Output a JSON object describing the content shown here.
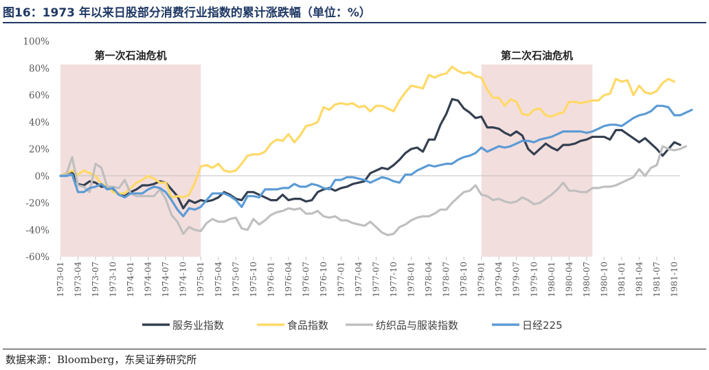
{
  "figure": {
    "title": "图16：1973 年以来日股部分消费行业指数的累计涨跌幅（单位：%）",
    "source": "数据来源：Bloomberg，东吴证券研究所"
  },
  "chart_data": {
    "type": "line",
    "ylim": [
      -60,
      100
    ],
    "y_ticks": [
      "100%",
      "80%",
      "60%",
      "40%",
      "20%",
      "0%",
      "-20%",
      "-40%",
      "-60%"
    ],
    "y_tick_values": [
      100,
      80,
      60,
      40,
      20,
      0,
      -20,
      -40,
      -60
    ],
    "x_tick_labels": [
      "1973-01",
      "1973-04",
      "1973-07",
      "1973-10",
      "1974-01",
      "1974-04",
      "1974-07",
      "1974-10",
      "1975-01",
      "1975-04",
      "1975-07",
      "1975-10",
      "1976-01",
      "1976-04",
      "1976-07",
      "1976-10",
      "1977-01",
      "1977-04",
      "1977-07",
      "1977-10",
      "1978-01",
      "1978-04",
      "1978-07",
      "1978-10",
      "1979-01",
      "1979-04",
      "1979-07",
      "1979-10",
      "1980-01",
      "1980-04",
      "1980-07",
      "1980-10",
      "1981-01",
      "1981-04",
      "1981-07",
      "1981-10"
    ],
    "x_start": "1973-01",
    "legend_position": "bottom",
    "shaded_regions": [
      {
        "label": "第一次石油危机",
        "start": "1973-01",
        "end": "1975-01",
        "color": "#f3dede"
      },
      {
        "label": "第二次石油危机",
        "start": "1979-01",
        "end": "1980-08",
        "color": "#f3dede"
      }
    ],
    "series": [
      {
        "name": "服务业指数",
        "color": "#333f50",
        "values": [
          0,
          2,
          3,
          -6,
          -7,
          -4,
          -5,
          -8,
          -8,
          -10,
          -14,
          -15,
          -12,
          -10,
          -7,
          -7,
          -6,
          -4,
          -5,
          -10,
          -15,
          -24,
          -18,
          -20,
          -18,
          -19,
          -18,
          -16,
          -12,
          -14,
          -17,
          -18,
          -12,
          -12,
          -14,
          -16,
          -18,
          -18,
          -14,
          -18,
          -17,
          -17,
          -19,
          -18,
          -12,
          -10,
          -9,
          -11,
          -9,
          -8,
          -6,
          -5,
          -4,
          2,
          4,
          6,
          5,
          8,
          12,
          17,
          20,
          21,
          18,
          27,
          27,
          38,
          46,
          57,
          56,
          50,
          47,
          43,
          44,
          36,
          36,
          35,
          32,
          30,
          33,
          30,
          20,
          16,
          20,
          24,
          21,
          19,
          23,
          23,
          24,
          26,
          27,
          29,
          29,
          29,
          27,
          34,
          34,
          31,
          28,
          25,
          28,
          24,
          20,
          15,
          20,
          25,
          23
        ]
      },
      {
        "name": "食品指数",
        "color": "#ffd966",
        "values": [
          0,
          2,
          4,
          1,
          4,
          2,
          0,
          -6,
          -7,
          -12,
          -13,
          -13,
          -9,
          -5,
          -3,
          0,
          -2,
          -5,
          -5,
          -16,
          -15,
          -16,
          -14,
          -5,
          7,
          8,
          6,
          9,
          4,
          3,
          4,
          9,
          15,
          16,
          16,
          18,
          24,
          27,
          26,
          31,
          25,
          30,
          37,
          38,
          40,
          51,
          49,
          53,
          54,
          53,
          54,
          51,
          52,
          48,
          52,
          52,
          50,
          48,
          56,
          62,
          67,
          66,
          65,
          75,
          73,
          75,
          76,
          81,
          78,
          76,
          77,
          74,
          73,
          64,
          58,
          58,
          52,
          57,
          55,
          46,
          45,
          49,
          50,
          45,
          44,
          46,
          47,
          55,
          55,
          54,
          55,
          56,
          56,
          60,
          61,
          72,
          70,
          71,
          60,
          67,
          62,
          61,
          63,
          69,
          72,
          70
        ]
      },
      {
        "name": "纺织品与服装指数",
        "color": "#bfbfbf",
        "values": [
          0,
          1,
          14,
          -7,
          -8,
          -12,
          9,
          6,
          -8,
          -8,
          -9,
          -3,
          -13,
          -15,
          -15,
          -15,
          -15,
          -10,
          -17,
          -29,
          -34,
          -43,
          -38,
          -40,
          -41,
          -35,
          -32,
          -34,
          -34,
          -32,
          -31,
          -39,
          -40,
          -32,
          -36,
          -33,
          -29,
          -27,
          -26,
          -24,
          -25,
          -24,
          -28,
          -28,
          -26,
          -30,
          -31,
          -30,
          -33,
          -33,
          -35,
          -36,
          -37,
          -34,
          -38,
          -42,
          -44,
          -43,
          -38,
          -36,
          -33,
          -31,
          -30,
          -30,
          -28,
          -25,
          -25,
          -20,
          -16,
          -12,
          -11,
          -7,
          -14,
          -15,
          -18,
          -17,
          -19,
          -20,
          -19,
          -16,
          -18,
          -21,
          -20,
          -17,
          -14,
          -10,
          -5,
          -11,
          -11,
          -12,
          -12,
          -9,
          -9,
          -8,
          -8,
          -7,
          -5,
          -3,
          -1,
          5,
          0,
          6,
          8,
          22,
          20,
          19,
          20,
          22
        ]
      },
      {
        "name": "日经225",
        "color": "#5b9bd5",
        "values": [
          0,
          0,
          1,
          -12,
          -12,
          -9,
          -8,
          -6,
          -10,
          -9,
          -14,
          -16,
          -13,
          -13,
          -13,
          -10,
          -8,
          -9,
          -12,
          -18,
          -25,
          -30,
          -24,
          -25,
          -23,
          -18,
          -13,
          -13,
          -13,
          -15,
          -18,
          -23,
          -15,
          -15,
          -16,
          -10,
          -10,
          -10,
          -9,
          -9,
          -6,
          -8,
          -8,
          -6,
          -7,
          -9,
          -10,
          -3,
          -3,
          -1,
          -1,
          -2,
          -3,
          -5,
          -3,
          -1,
          -2,
          -4,
          -5,
          1,
          1,
          4,
          6,
          8,
          7,
          8,
          9,
          9,
          12,
          14,
          15,
          17,
          21,
          18,
          20,
          22,
          21,
          22,
          24,
          26,
          26,
          25,
          27,
          28,
          29,
          31,
          33,
          33,
          33,
          33,
          32,
          33,
          35,
          37,
          38,
          38,
          37,
          40,
          43,
          45,
          46,
          48,
          52,
          52,
          51,
          45,
          45,
          47,
          49
        ]
      }
    ]
  }
}
